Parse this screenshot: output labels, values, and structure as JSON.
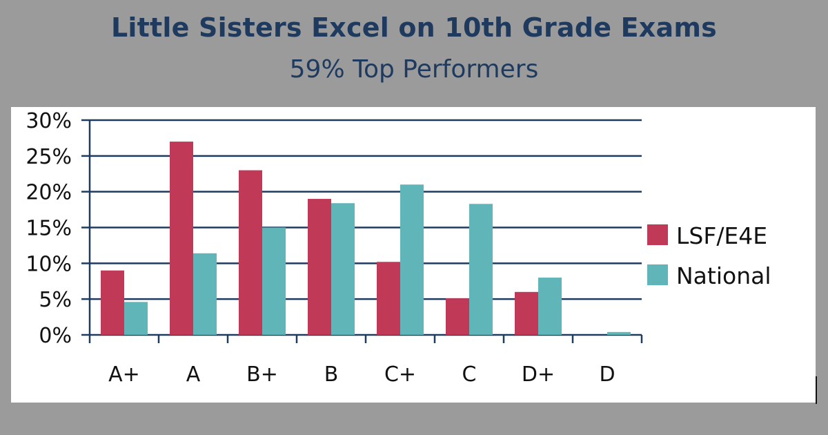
{
  "header": {
    "title": "Little Sisters Excel on 10th Grade Exams",
    "subtitle": "59% Top Performers"
  },
  "colors": {
    "background": "#9b9b9b",
    "title": "#1f3a5f",
    "lsf": "#c03a57",
    "national": "#5fb5b7",
    "grid": "#1f3a5f"
  },
  "chart_data": {
    "type": "bar",
    "title": "",
    "xlabel": "",
    "ylabel": "",
    "categories": [
      "A+",
      "A",
      "B+",
      "B",
      "C+",
      "C",
      "D+",
      "D"
    ],
    "ylim": [
      0,
      30
    ],
    "yticks": [
      "0%",
      "5%",
      "10%",
      "15%",
      "20%",
      "25%",
      "30%"
    ],
    "grid": true,
    "legend_position": "right",
    "series": [
      {
        "name": "LSF/E4E",
        "color": "#c03a57",
        "values": [
          9,
          27,
          23,
          19,
          10.2,
          5.1,
          6,
          0
        ]
      },
      {
        "name": "National",
        "color": "#5fb5b7",
        "values": [
          4.6,
          11.4,
          15,
          18.4,
          21,
          18.3,
          8,
          0.4
        ]
      }
    ]
  }
}
